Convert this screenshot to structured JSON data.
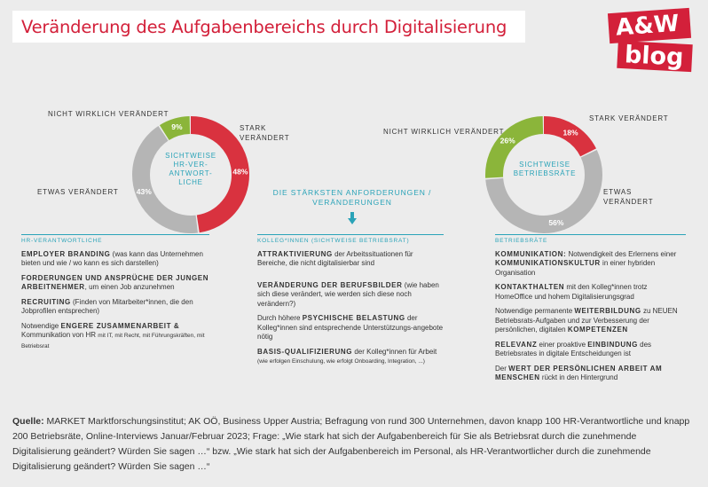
{
  "title": "Veränderung des Aufgabenbereichs durch Digitalisierung",
  "logo": {
    "top": "A&W",
    "bottom": "blog"
  },
  "colors": {
    "stark": "#d9323f",
    "etwas": "#b5b5b5",
    "nicht": "#8bb53a",
    "accent": "#2aa3b8",
    "brand": "#d3203a"
  },
  "chart_data": [
    {
      "type": "pie",
      "center_label": "SICHTWEISE HR-VER-ANTWORT-LICHE",
      "slices": [
        {
          "label": "STARK VERÄNDERT",
          "value": 48,
          "display": "48%"
        },
        {
          "label": "ETWAS VERÄNDERT",
          "value": 43,
          "display": "43%"
        },
        {
          "label": "NICHT WIRKLICH VERÄNDERT",
          "value": 9,
          "display": "9%"
        }
      ]
    },
    {
      "type": "pie",
      "center_label": "SICHTWEISE BETRIEBSRÄTE",
      "slices": [
        {
          "label": "STARK VERÄNDERT",
          "value": 18,
          "display": "18%"
        },
        {
          "label": "ETWAS VERÄNDERT",
          "value": 56,
          "display": "56%"
        },
        {
          "label": "NICHT WIRKLICH VERÄNDERT",
          "value": 26,
          "display": "26%"
        }
      ]
    }
  ],
  "labels": {
    "hr_nicht": "NICHT WIRKLICH VERÄNDERT",
    "hr_stark_1": "STARK",
    "hr_stark_2": "VERÄNDERT",
    "hr_etwas": "ETWAS VERÄNDERT",
    "hr_center": [
      "SICHTWEISE",
      "HR-VER-",
      "ANTWORT-",
      "LICHE"
    ],
    "br_nicht": "NICHT WIRKLICH VERÄNDERT",
    "br_stark": "STARK VERÄNDERT",
    "br_etwas_1": "ETWAS",
    "br_etwas_2": "VERÄNDERT",
    "br_center": [
      "SICHTWEISE",
      "BETRIEBSRÄTE"
    ]
  },
  "mid_heading": [
    "DIE STÄRKSTEN ANFORDERUNGEN /",
    "VERÄNDERUNGEN"
  ],
  "left_col": {
    "head": "HR-VERANTWORTLICHE",
    "items": [
      {
        "b": "EMPLOYER BRANDING",
        "t": " (was kann das Unternehmen bieten und wie / wo kann es sich darstellen)"
      },
      {
        "b": "FORDERUNGEN UND ANSPRÜCHE DER JUNGEN ARBEITNEHMER",
        "t": ", um einen Job anzunehmen"
      },
      {
        "b": "RECRUITING",
        "t": " (Finden von Mitarbeiter*innen, die den Jobprofilen entsprechen)"
      },
      {
        "pre": "Notwendige ",
        "b": "ENGERE ZUSAMMENARBEIT &",
        "t": " Kommunikation von HR ",
        "s": "mit IT, mit Recht, mit Führungskräften, mit Betriebsrat"
      }
    ]
  },
  "mid_col": {
    "head": "KOLLEG*INNEN (SICHTWEISE BETRIEBSRAT)",
    "items": [
      {
        "b": "ATTRAKTIVIERUNG",
        "t": " der Arbeitssituationen für Bereiche, die nicht digitalisierbar sind"
      },
      {
        "b": "VERÄNDERUNG DER BERUFSBILDER",
        "t": " (wie haben sich diese verändert, wie werden sich diese noch verändern?)"
      },
      {
        "pre": "Durch höhere ",
        "b": "PSYCHISCHE BELASTUNG",
        "t": " der Kolleg*innen sind entsprechende Unterstützungs-angebote nötig"
      },
      {
        "b": "BASIS-QUALIFIZIERUNG",
        "t": " der Kolleg*innen für Arbeit ",
        "s": "(wie erfolgen Einschulung, wie erfolgt Onboarding, Integration, ...)"
      }
    ]
  },
  "right_col": {
    "head": "BETRIEBSRÄTE",
    "items": [
      {
        "b": "KOMMUNIKATION:",
        "t": " Notwendigkeit des Erlernens einer ",
        "b2": "KOMMUNIKATIONSKULTUR",
        "s": " in einer hybriden Organisation"
      },
      {
        "b": "KONTAKTHALTEN",
        "t": " mit den Kolleg*innen trotz HomeOffice und hohem Digitalisierungsgrad"
      },
      {
        "pre": "Notwendige permanente ",
        "b": "WEITERBILDUNG",
        "t": " zu NEUEN Betriebsrats-Aufgaben und zur Verbesserung der persönlichen, digitalen ",
        "b2": "KOMPETENZEN"
      },
      {
        "b": "RELEVANZ",
        "t": " einer proaktive ",
        "b2": "EINBINDUNG",
        "t2": " des Betriebsrates in digitale Entscheidungen ist"
      },
      {
        "pre": "Der ",
        "b": "WERT DER PERSÖNLICHEN ARBEIT AM MENSCHEN",
        "t": " rückt in den Hintergrund"
      }
    ]
  },
  "source": {
    "label": "Quelle:",
    "text": " MARKET Marktforschungsinstitut; AK OÖ, Business Upper Austria; Befragung von rund 300 Unternehmen, davon knapp 100 HR-Verantwortliche und knapp 200 Betriebsräte, Online-Interviews Januar/Februar 2023; Frage: „Wie stark hat sich der Aufgabenbereich für Sie als Betriebsrat durch die zunehmende Digitalisierung geändert? Würden Sie sagen …“ bzw. „Wie stark hat sich der Aufgabenbereich im Personal, als HR-Verantwortlicher durch die zunehmende Digitalisierung geändert? Würden Sie sagen …“"
  }
}
